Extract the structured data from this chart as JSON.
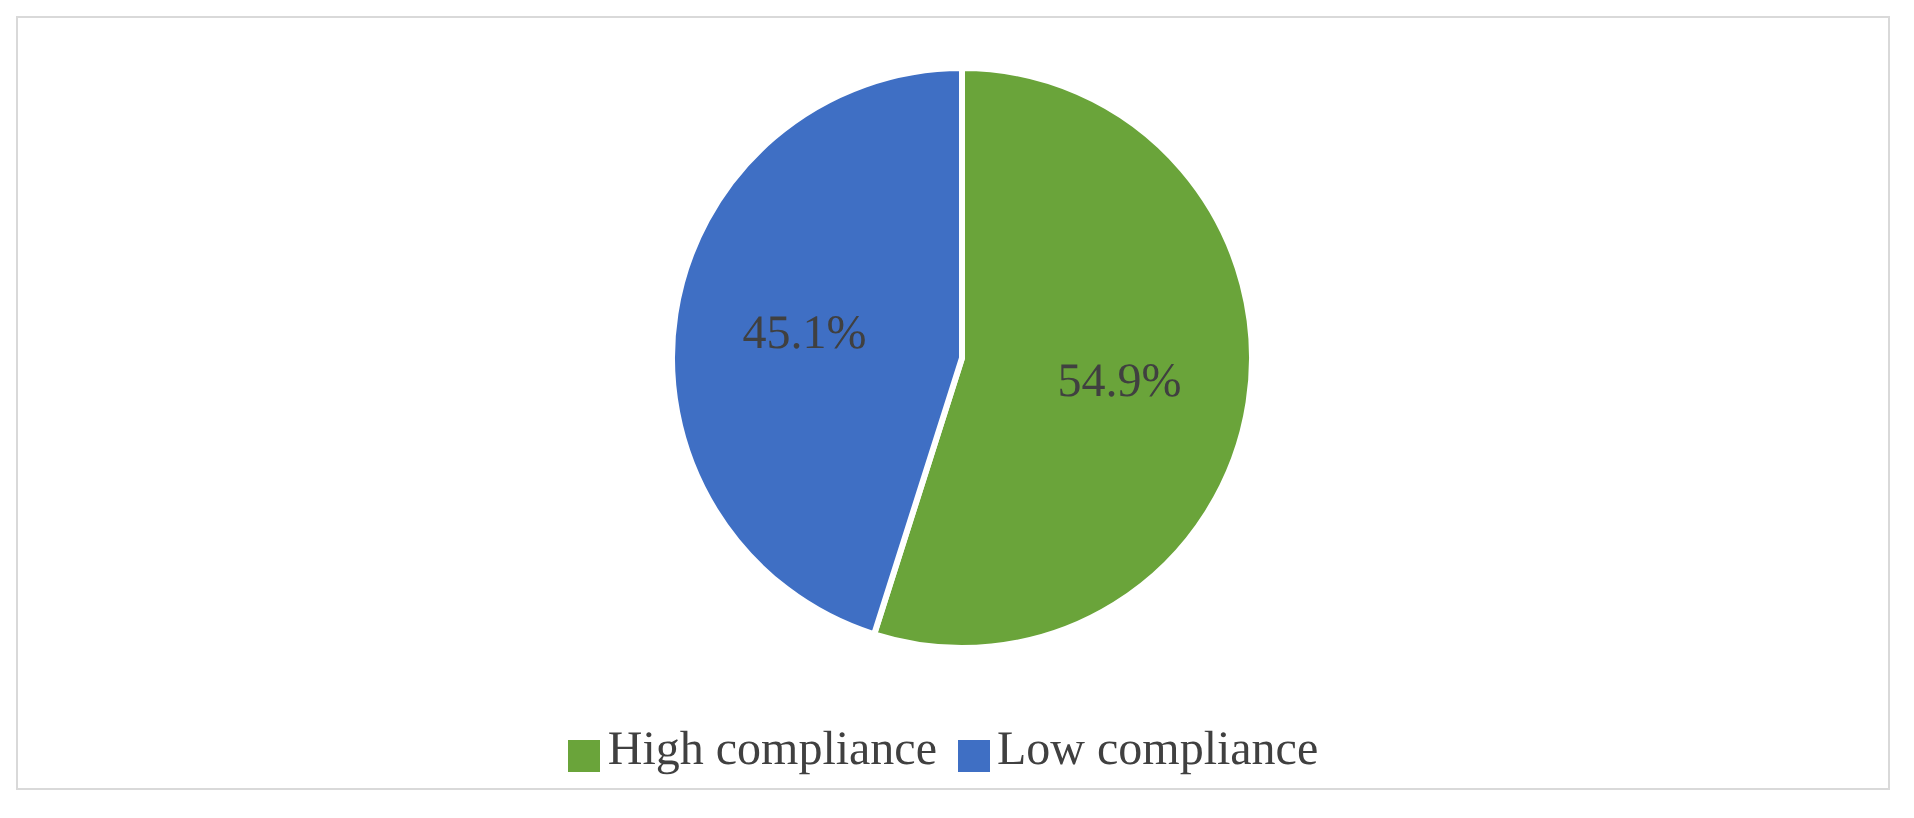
{
  "chart_data": {
    "type": "pie",
    "categories": [
      "High compliance",
      "Low compliance"
    ],
    "values": [
      54.9,
      45.1
    ],
    "colors": [
      "#6aa43a",
      "#3f6fc4"
    ],
    "value_labels": [
      "54.9%",
      "45.1%"
    ],
    "legend": "bottom"
  }
}
